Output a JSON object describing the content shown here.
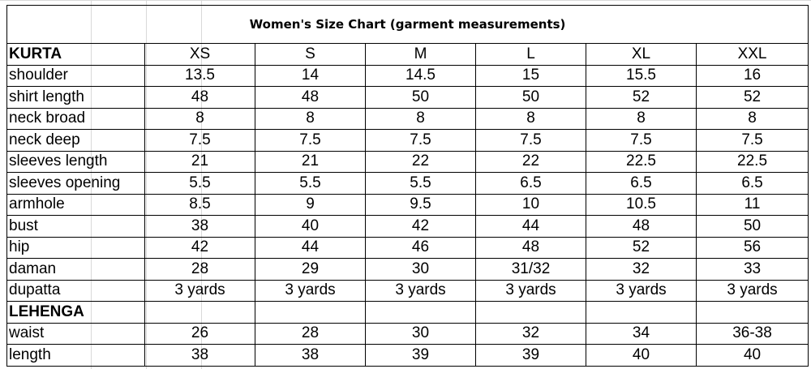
{
  "title": "Women's Size Chart (garment measurements)",
  "kurta": {
    "section_label": "KURTA",
    "sizes": [
      "XS",
      "S",
      "M",
      "L",
      "XL",
      "XXL"
    ],
    "rows": [
      {
        "label": "shoulder",
        "values": [
          "13.5",
          "14",
          "14.5",
          "15",
          "15.5",
          "16"
        ]
      },
      {
        "label": "shirt length",
        "values": [
          "48",
          "48",
          "50",
          "50",
          "52",
          "52"
        ]
      },
      {
        "label": "neck broad",
        "values": [
          "8",
          "8",
          "8",
          "8",
          "8",
          "8"
        ]
      },
      {
        "label": "neck deep",
        "values": [
          "7.5",
          "7.5",
          "7.5",
          "7.5",
          "7.5",
          "7.5"
        ]
      },
      {
        "label": "sleeves length",
        "values": [
          "21",
          "21",
          "22",
          "22",
          "22.5",
          "22.5"
        ]
      },
      {
        "label": "sleeves opening",
        "values": [
          "5.5",
          "5.5",
          "5.5",
          "6.5",
          "6.5",
          "6.5"
        ]
      },
      {
        "label": "armhole",
        "values": [
          "8.5",
          "9",
          "9.5",
          "10",
          "10.5",
          "11"
        ]
      },
      {
        "label": "bust",
        "values": [
          "38",
          "40",
          "42",
          "44",
          "48",
          "50"
        ]
      },
      {
        "label": "hip",
        "values": [
          "42",
          "44",
          "46",
          "48",
          "52",
          "56"
        ]
      },
      {
        "label": "daman",
        "values": [
          "28",
          "29",
          "30",
          "31/32",
          "32",
          "33"
        ]
      },
      {
        "label": "dupatta",
        "values": [
          "3 yards",
          "3 yards",
          "3 yards",
          "3 yards",
          "3 yards",
          "3 yards"
        ]
      }
    ]
  },
  "lehenga": {
    "section_label": "LEHENGA",
    "rows": [
      {
        "label": "waist",
        "values": [
          "26",
          "28",
          "30",
          "32",
          "34",
          "36-38"
        ]
      },
      {
        "label": "length",
        "values": [
          "38",
          "38",
          "39",
          "39",
          "40",
          "40"
        ]
      }
    ]
  }
}
